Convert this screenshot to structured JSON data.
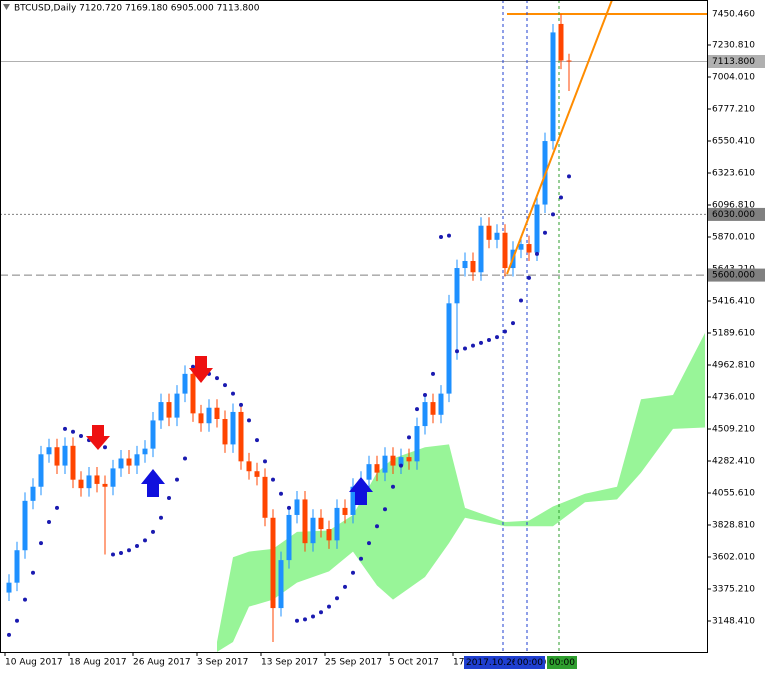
{
  "chart_data": {
    "type": "candlestick",
    "title": "BTCUSD,Daily  7120.720 7169.180 6905.000 7113.800",
    "categories": [
      "10 Aug 2017",
      null,
      null,
      null,
      null,
      null,
      null,
      null,
      "18 Aug 2017",
      null,
      null,
      null,
      null,
      null,
      null,
      null,
      "26 Aug 2017",
      null,
      null,
      null,
      null,
      null,
      null,
      null,
      "3 Sep 2017",
      null,
      null,
      null,
      null,
      null,
      null,
      null,
      "13 Sep 2017",
      null,
      null,
      null,
      null,
      null,
      null,
      null,
      "25 Sep 2017",
      null,
      null,
      null,
      null,
      null,
      null,
      null,
      "5 Oct 2017",
      null,
      null,
      null,
      null,
      null,
      null,
      null,
      "17 Oct 2017",
      null,
      null,
      null,
      null,
      null,
      null,
      null,
      null,
      null,
      null,
      null,
      null,
      null,
      null
    ],
    "open": [
      3350,
      3420,
      3650,
      4000,
      4100,
      4330,
      4380,
      4250,
      4390,
      4150,
      4090,
      4180,
      4120,
      4100,
      4230,
      4300,
      4250,
      4330,
      4370,
      4570,
      4700,
      4590,
      4760,
      4900,
      4620,
      4550,
      4660,
      4580,
      4400,
      4630,
      4280,
      4210,
      4170,
      3880,
      3240,
      3580,
      3900,
      4010,
      3700,
      3880,
      3800,
      3720,
      3950,
      3900,
      4100,
      4150,
      4260,
      4200,
      4320,
      4250,
      4310,
      4280,
      4530,
      4700,
      4610,
      4760,
      5400,
      5650,
      5700,
      5620,
      5950,
      5850,
      5900,
      5650,
      5780,
      5820,
      5760,
      6100,
      6550,
      7380,
      7120.72
    ],
    "high": [
      3480,
      3710,
      4060,
      4160,
      4390,
      4440,
      4440,
      4450,
      4450,
      4210,
      4240,
      4240,
      4180,
      4290,
      4360,
      4360,
      4390,
      4430,
      4630,
      4760,
      4760,
      4820,
      4960,
      4960,
      4680,
      4720,
      4720,
      4640,
      4690,
      4690,
      4340,
      4270,
      4230,
      3940,
      3640,
      3960,
      4070,
      4070,
      3940,
      3940,
      3860,
      4010,
      4010,
      4160,
      4210,
      4320,
      4320,
      4380,
      4380,
      4370,
      4370,
      4590,
      4760,
      4760,
      4820,
      5460,
      5710,
      5760,
      5760,
      6010,
      6010,
      5960,
      5960,
      5840,
      5880,
      5880,
      6160,
      6610,
      7380,
      7450,
      7169.18
    ],
    "low": [
      3290,
      3360,
      3590,
      3940,
      4040,
      4270,
      4190,
      4190,
      4090,
      4030,
      4030,
      4060,
      3620,
      4040,
      4170,
      4190,
      4190,
      4270,
      4310,
      4510,
      4530,
      4530,
      4700,
      4560,
      4490,
      4490,
      4520,
      4340,
      4340,
      4220,
      4150,
      4110,
      3820,
      3000,
      3180,
      3520,
      3840,
      3640,
      3640,
      3740,
      3660,
      3660,
      3840,
      3840,
      4040,
      4090,
      4140,
      4140,
      4190,
      4190,
      4220,
      4220,
      4470,
      4550,
      4550,
      4700,
      5000,
      5590,
      5560,
      5560,
      5790,
      5790,
      5590,
      5590,
      5720,
      5700,
      5700,
      6040,
      6490,
      7060,
      6905
    ],
    "close": [
      3420,
      3650,
      4000,
      4100,
      4330,
      4380,
      4250,
      4390,
      4150,
      4090,
      4180,
      4120,
      4100,
      4230,
      4300,
      4250,
      4330,
      4370,
      4570,
      4700,
      4590,
      4760,
      4900,
      4620,
      4550,
      4660,
      4580,
      4400,
      4630,
      4280,
      4210,
      4170,
      3880,
      3240,
      3580,
      3900,
      4010,
      3700,
      3880,
      3800,
      3720,
      3950,
      3900,
      4100,
      4150,
      4260,
      4200,
      4320,
      4250,
      4310,
      4280,
      4530,
      4700,
      4610,
      4760,
      5400,
      5650,
      5700,
      5620,
      5950,
      5850,
      5900,
      5650,
      5780,
      5820,
      5760,
      6100,
      6550,
      7320,
      7120.72,
      7113.8
    ],
    "up_color": "#1e90ff",
    "down_color": "#ff4500",
    "ylim": [
      2928.7,
      7549.7
    ],
    "yticks": [
      {
        "value": 7230.81,
        "label": "7230.810"
      },
      {
        "value": 7004.01,
        "label": "7004.010"
      },
      {
        "value": 6777.21,
        "label": "6777.210"
      },
      {
        "value": 6550.41,
        "label": "6550.410"
      },
      {
        "value": 6323.61,
        "label": "6323.610"
      },
      {
        "value": 6096.81,
        "label": "6096.810"
      },
      {
        "value": 5870.01,
        "label": "5870.010"
      },
      {
        "value": 5643.21,
        "label": "5643.210"
      },
      {
        "value": 5416.41,
        "label": "5416.410"
      },
      {
        "value": 5189.61,
        "label": "5189.610"
      },
      {
        "value": 4962.81,
        "label": "4962.810"
      },
      {
        "value": 4736.01,
        "label": "4736.010"
      },
      {
        "value": 4509.21,
        "label": "4509.210"
      },
      {
        "value": 4282.41,
        "label": "4282.410"
      },
      {
        "value": 4055.61,
        "label": "4055.610"
      },
      {
        "value": 3828.81,
        "label": "3828.810"
      },
      {
        "value": 3602.01,
        "label": "3602.010"
      },
      {
        "value": 3375.21,
        "label": "3375.210"
      },
      {
        "value": 3148.41,
        "label": "3148.410"
      }
    ],
    "cloud": {
      "color": "#98f598",
      "x": [
        26,
        28,
        30,
        33,
        36,
        40,
        43,
        46,
        48,
        52,
        55,
        57,
        62,
        65,
        68,
        72,
        76,
        79,
        83,
        87
      ],
      "upper": [
        3000,
        3600,
        3640,
        3660,
        3780,
        3790,
        3900,
        4200,
        4300,
        4380,
        4400,
        3950,
        3850,
        3860,
        3960,
        4050,
        4100,
        4720,
        4750,
        5190
      ],
      "lower": [
        2930,
        3000,
        3250,
        3300,
        3420,
        3500,
        3640,
        3400,
        3300,
        3460,
        3700,
        3880,
        3820,
        3820,
        3820,
        3990,
        4010,
        4200,
        4510,
        4520
      ]
    },
    "sar": {
      "color": "#1a1ab0",
      "values": [
        3050,
        3150,
        3300,
        3490,
        3700,
        3850,
        3950,
        4510,
        4490,
        4460,
        4430,
        4400,
        4380,
        3620,
        3630,
        3650,
        3680,
        3720,
        3780,
        3880,
        4020,
        4150,
        4300,
        4950,
        4930,
        4900,
        4870,
        4820,
        4760,
        4680,
        4570,
        4430,
        4280,
        4150,
        4050,
        3950,
        3150,
        3160,
        3180,
        3210,
        3250,
        3310,
        3390,
        3490,
        3590,
        3700,
        3820,
        3940,
        4100,
        4250,
        4450,
        4650,
        4750,
        4900,
        5870,
        5880,
        5060,
        5080,
        5100,
        5120,
        5140,
        5160,
        5200,
        5260,
        5420,
        5580,
        5750,
        5900,
        6030,
        6150,
        6300
      ]
    },
    "hlines": [
      {
        "value": 7450.46,
        "label": "7450.460",
        "color": "#ff8c00"
      },
      {
        "value": 7113.8,
        "label": "7113.800",
        "color": "#b0b0b0"
      },
      {
        "value": 6030,
        "label": "6030.000",
        "color": "#808080"
      },
      {
        "value": 5600,
        "label": "5600.000",
        "color": "#808080"
      }
    ],
    "vlines": [
      {
        "x": 62,
        "label": "2017.10.26 00:00",
        "color": "#1f3fd0"
      },
      {
        "x": 65,
        "label": "00:00",
        "color": "#1f3fd0"
      },
      {
        "x": 69,
        "label": "00:00",
        "color": "#2e9e2e"
      }
    ]
  }
}
